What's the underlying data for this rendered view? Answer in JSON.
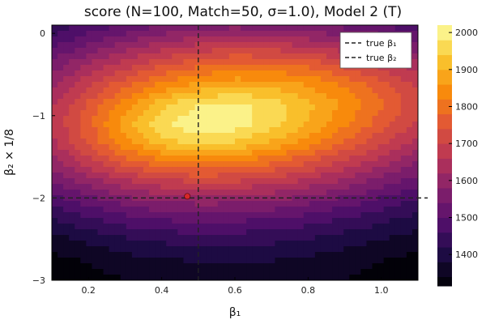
{
  "chart_data": {
    "type": "heatmap",
    "title": "score (N=100, Match=50, σ=1.0), Model 2 (T)",
    "xlabel": "β₁",
    "ylabel": "β₂ × 1/8",
    "xlim": [
      0.1,
      1.1
    ],
    "ylim": [
      -3.0,
      0.1
    ],
    "xticks": [
      0.2,
      0.4,
      0.6,
      0.8,
      1.0
    ],
    "xtick_labels": [
      "0.2",
      "0.4",
      "0.6",
      "0.8",
      "1.0"
    ],
    "yticks": [
      0,
      -1,
      -2,
      -3
    ],
    "ytick_labels": [
      "0",
      "−1",
      "−2",
      "−3"
    ],
    "colorbar": {
      "range": [
        1315,
        2020
      ],
      "ticks": [
        1400,
        1500,
        1600,
        1700,
        1800,
        1900,
        2000
      ],
      "tick_labels": [
        "1400",
        "1500",
        "1600",
        "1700",
        "1800",
        "1900",
        "2000"
      ],
      "colormap": "inferno"
    },
    "contour_levels": [
      1340,
      1380,
      1420,
      1460,
      1500,
      1540,
      1580,
      1620,
      1660,
      1700,
      1740,
      1780,
      1820,
      1860,
      1900,
      1940,
      1980,
      2020
    ],
    "surface": {
      "x_range": [
        0.1,
        1.1
      ],
      "y_range": [
        -3.0,
        0.1
      ],
      "nx": 11,
      "ny": 14,
      "z": [
        [
          1430,
          1470,
          1505,
          1535,
          1555,
          1565,
          1560,
          1545,
          1525,
          1500,
          1470
        ],
        [
          1490,
          1540,
          1590,
          1630,
          1660,
          1675,
          1670,
          1650,
          1620,
          1585,
          1545
        ],
        [
          1555,
          1620,
          1680,
          1730,
          1770,
          1790,
          1785,
          1765,
          1725,
          1680,
          1630
        ],
        [
          1610,
          1690,
          1765,
          1825,
          1865,
          1885,
          1880,
          1855,
          1810,
          1755,
          1690
        ],
        [
          1650,
          1745,
          1840,
          1925,
          1975,
          1990,
          1960,
          1910,
          1850,
          1785,
          1715
        ],
        [
          1665,
          1770,
          1880,
          1975,
          2015,
          2005,
          1960,
          1900,
          1830,
          1760,
          1690
        ],
        [
          1650,
          1745,
          1845,
          1920,
          1950,
          1935,
          1895,
          1840,
          1775,
          1710,
          1645
        ],
        [
          1600,
          1680,
          1755,
          1805,
          1825,
          1815,
          1785,
          1740,
          1690,
          1635,
          1580
        ],
        [
          1535,
          1595,
          1650,
          1685,
          1700,
          1695,
          1675,
          1645,
          1605,
          1560,
          1515
        ],
        [
          1470,
          1515,
          1555,
          1580,
          1590,
          1588,
          1575,
          1550,
          1520,
          1485,
          1450
        ],
        [
          1410,
          1445,
          1475,
          1495,
          1502,
          1500,
          1490,
          1472,
          1450,
          1425,
          1400
        ],
        [
          1360,
          1385,
          1410,
          1425,
          1432,
          1432,
          1426,
          1412,
          1395,
          1375,
          1355
        ],
        [
          1325,
          1345,
          1362,
          1375,
          1382,
          1384,
          1380,
          1370,
          1356,
          1340,
          1325
        ],
        [
          1315,
          1325,
          1338,
          1348,
          1354,
          1357,
          1355,
          1348,
          1338,
          1326,
          1316
        ]
      ]
    },
    "vline": {
      "x": 0.5,
      "legend": "true β₁"
    },
    "hline": {
      "y": -2.0,
      "legend": "true β₂"
    },
    "point": {
      "x": 0.47,
      "y": -1.98,
      "color": "#d62728"
    },
    "legend_position": "top-right",
    "grid": false
  }
}
